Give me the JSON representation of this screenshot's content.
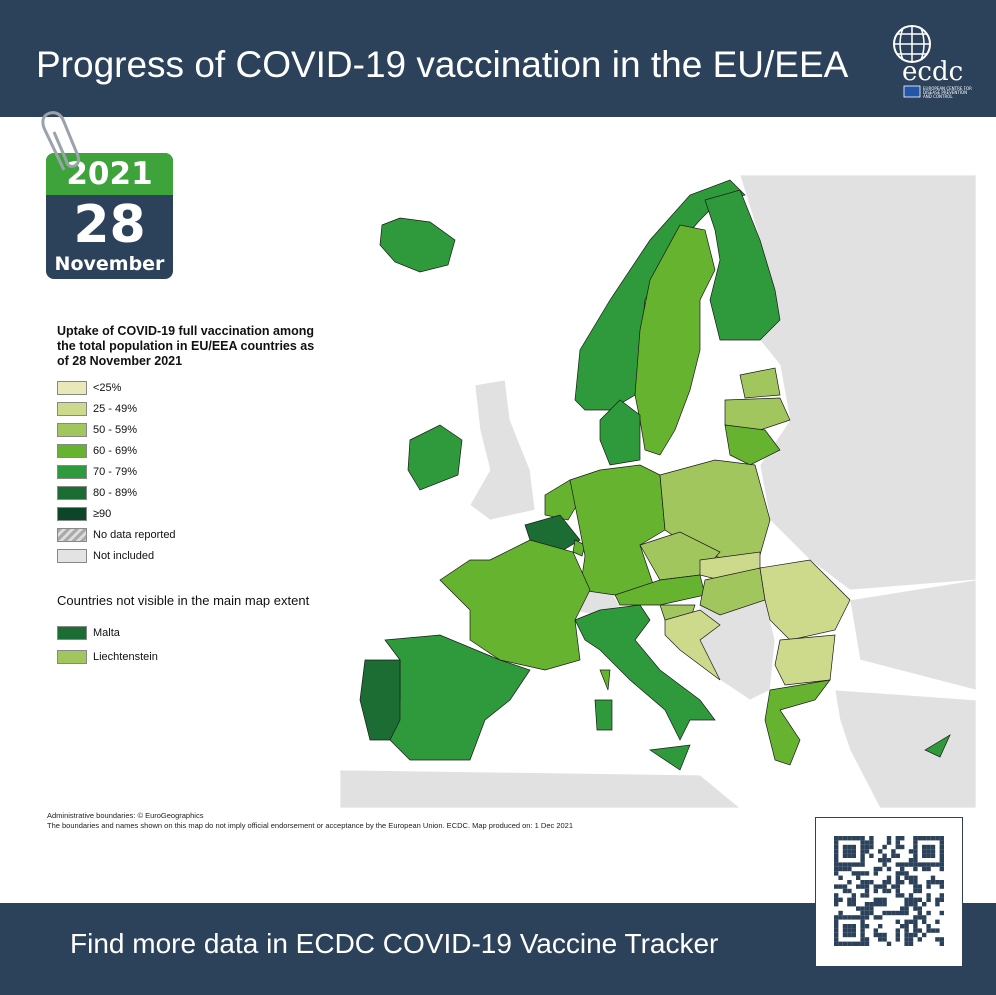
{
  "header": {
    "title": "Progress of COVID-19 vaccination in the EU/EEA",
    "logo_text": "ecdc",
    "logo_subtext": "EUROPEAN CENTRE FOR DISEASE PREVENTION AND CONTROL"
  },
  "calendar": {
    "year": "2021",
    "day": "28",
    "month": "November"
  },
  "legend": {
    "title": "Uptake of COVID-19 full vaccination among the total population in EU/EEA countries as of 28 November 2021",
    "items": [
      {
        "label": "<25%",
        "color": "#e8e8b9"
      },
      {
        "label": "25 - 49%",
        "color": "#cdd98b"
      },
      {
        "label": "50 - 59%",
        "color": "#a1c65e"
      },
      {
        "label": "60 - 69%",
        "color": "#66b32f"
      },
      {
        "label": "70 - 79%",
        "color": "#2f9a3b"
      },
      {
        "label": "80 - 89%",
        "color": "#1b6d34"
      },
      {
        "label": "≥90",
        "color": "#0c4527"
      },
      {
        "label": "No data reported",
        "color": "hatch"
      },
      {
        "label": "Not included",
        "color": "#e3e3e3"
      }
    ],
    "small_title": "Countries not visible in the main map extent",
    "small_items": [
      {
        "label": "Malta",
        "color": "#1b6d34"
      },
      {
        "label": "Liechtenstein",
        "color": "#a1c65e"
      }
    ]
  },
  "map": {
    "not_included_color": "#e1e1e1",
    "countries": {
      "Iceland": "70 - 79%",
      "Norway": "70 - 79%",
      "Sweden": "60 - 69%",
      "Finland": "70 - 79%",
      "Estonia": "50 - 59%",
      "Latvia": "50 - 59%",
      "Lithuania": "60 - 69%",
      "Denmark": "70 - 79%",
      "Ireland": "70 - 79%",
      "Netherlands": "60 - 69%",
      "Belgium": "80 - 89%",
      "Luxembourg": "60 - 69%",
      "Germany": "60 - 69%",
      "Poland": "50 - 59%",
      "Czechia": "50 - 59%",
      "Slovakia": "25 - 49%",
      "Austria": "60 - 69%",
      "Hungary": "50 - 59%",
      "Slovenia": "50 - 59%",
      "Croatia": "25 - 49%",
      "Romania": "25 - 49%",
      "Bulgaria": "25 - 49%",
      "Greece": "60 - 69%",
      "Cyprus": "70 - 79%",
      "France": "60 - 69%",
      "Spain": "70 - 79%",
      "Portugal": "80 - 89%",
      "Italy": "70 - 79%"
    }
  },
  "disclaimer": {
    "line1": "Administrative boundaries: © EuroGeographics",
    "line2": "The boundaries and names shown on this map do not imply official endorsement or acceptance by the European Union. ECDC. Map produced on: 1 Dec 2021"
  },
  "footer": {
    "text": "Find more data in ECDC COVID-19 Vaccine Tracker"
  }
}
